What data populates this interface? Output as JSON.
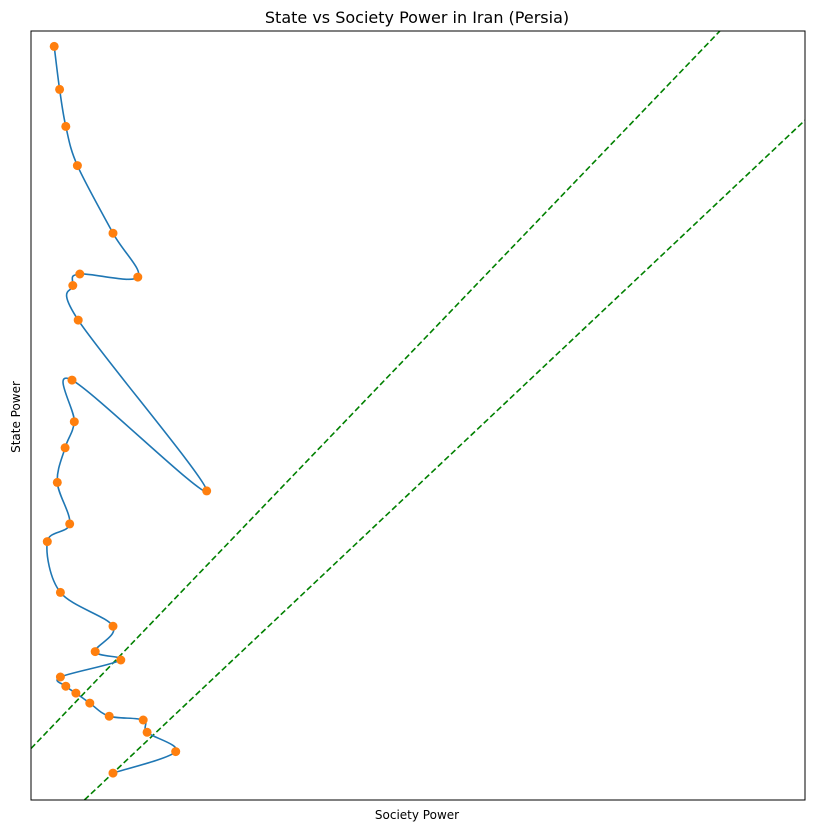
{
  "chart_data": {
    "type": "line",
    "title": "State vs Society Power in Iran (Persia)",
    "xlabel": "Society Power",
    "ylabel": "State Power",
    "xlim": [
      0,
      1
    ],
    "ylim": [
      0,
      1
    ],
    "grid": false,
    "ticks_shown": false,
    "series": [
      {
        "kind": "smooth-curve-with-markers",
        "line_color": "#1f77b4",
        "marker_color": "#ff7f0e",
        "points": [
          [
            0.03,
            0.98
          ],
          [
            0.037,
            0.924
          ],
          [
            0.045,
            0.876
          ],
          [
            0.06,
            0.825
          ],
          [
            0.106,
            0.737
          ],
          [
            0.138,
            0.68
          ],
          [
            0.063,
            0.684
          ],
          [
            0.054,
            0.669
          ],
          [
            0.061,
            0.624
          ],
          [
            0.227,
            0.402
          ],
          [
            0.053,
            0.546
          ],
          [
            0.056,
            0.492
          ],
          [
            0.044,
            0.458
          ],
          [
            0.034,
            0.413
          ],
          [
            0.05,
            0.359
          ],
          [
            0.021,
            0.336
          ],
          [
            0.038,
            0.27
          ],
          [
            0.106,
            0.226
          ],
          [
            0.083,
            0.193
          ],
          [
            0.116,
            0.182
          ],
          [
            0.038,
            0.16
          ],
          [
            0.045,
            0.148
          ],
          [
            0.058,
            0.139
          ],
          [
            0.076,
            0.126
          ],
          [
            0.101,
            0.109
          ],
          [
            0.145,
            0.104
          ],
          [
            0.15,
            0.088
          ],
          [
            0.187,
            0.063
          ],
          [
            0.106,
            0.035
          ]
        ]
      }
    ],
    "reference_lines": [
      {
        "style": "dashed",
        "color": "#008000",
        "from": [
          0.0,
          0.067
        ],
        "to": [
          0.89,
          1.0
        ]
      },
      {
        "style": "dashed",
        "color": "#008000",
        "from": [
          0.069,
          0.0
        ],
        "to": [
          1.0,
          0.884
        ]
      }
    ]
  }
}
